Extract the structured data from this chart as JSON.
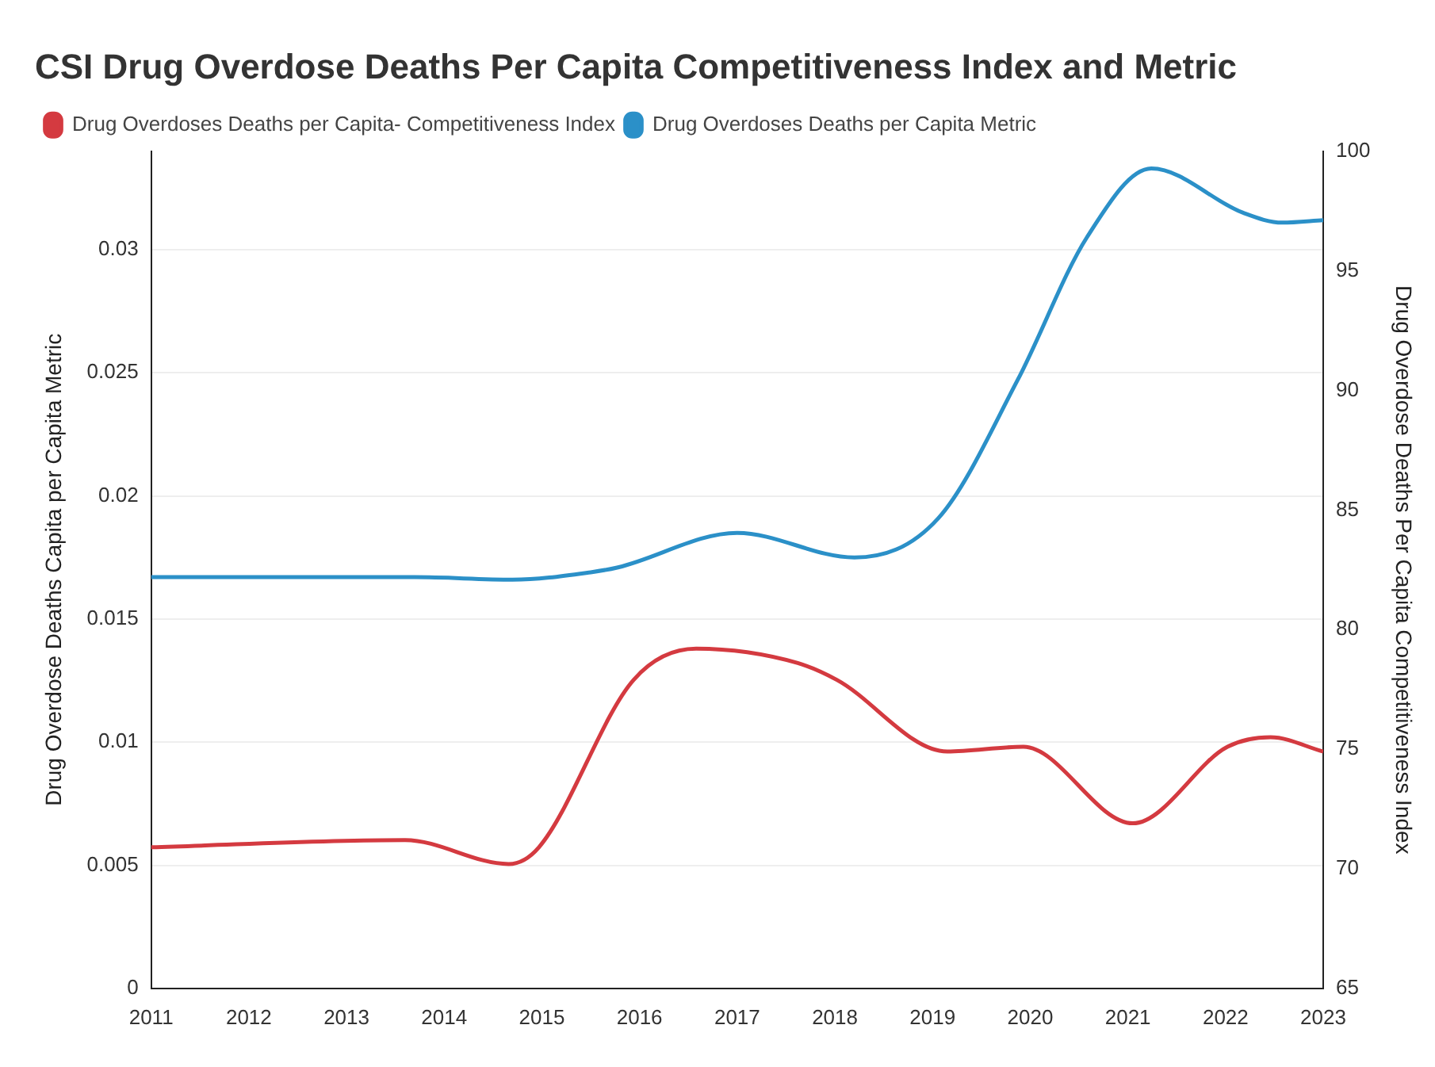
{
  "chart_data": {
    "type": "line",
    "title": "CSI Drug Overdose Deaths Per Capita Competitiveness Index and Metric",
    "ylabel": "Drug Overdose Deaths Capita per Capita Metric",
    "y2label": "Drug Overdose Deaths Per Capita Competitiveness Index",
    "xlim": [
      2011,
      2023
    ],
    "xticks": [
      2011,
      2012,
      2013,
      2014,
      2015,
      2016,
      2017,
      2018,
      2019,
      2020,
      2021,
      2022,
      2023
    ],
    "ylim": [
      0,
      0.034
    ],
    "yticks": [
      0,
      0.005,
      0.01,
      0.015,
      0.02,
      0.025,
      0.03
    ],
    "y2lim": [
      65,
      100
    ],
    "y2ticks": [
      65,
      70,
      75,
      80,
      85,
      90,
      95,
      100
    ],
    "grid": "y",
    "legend": "top left",
    "marker": "none",
    "line_style": "solid",
    "series": [
      {
        "name": "Drug Overdoses Deaths per Capita- Competitiveness Index",
        "color": "#d43a40",
        "axis": "y2",
        "x": [
          2011,
          2013.6,
          2014.66,
          2014.97,
          2015.94,
          2016.58,
          2017.62,
          2018.02,
          2019.15,
          2019.93,
          2021.05,
          2022.02,
          2022.46,
          2023
        ],
        "values": [
          70.9,
          71.2,
          70.2,
          70.9,
          77.9,
          79.2,
          78.6,
          77.9,
          74.9,
          75.1,
          71.9,
          75.1,
          75.5,
          74.9
        ]
      },
      {
        "name": "Drug Overdoses Deaths per Capita Metric",
        "color": "#2b90c8",
        "x": [
          2011,
          2013.7,
          2014.7,
          2015.5,
          2015.78,
          2017.0,
          2018.2,
          2019.06,
          2019.87,
          2020.58,
          2021.24,
          2022.18,
          2022.58,
          2023
        ],
        "values": [
          0.0167,
          0.0167,
          0.0166,
          0.0169,
          0.0171,
          0.0185,
          0.0175,
          0.0191,
          0.0247,
          0.0305,
          0.0333,
          0.0315,
          0.0311,
          0.0312
        ]
      }
    ]
  }
}
